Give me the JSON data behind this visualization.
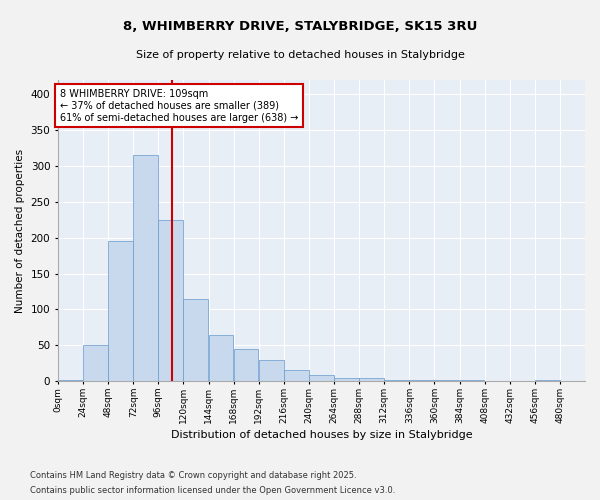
{
  "title_line1": "8, WHIMBERRY DRIVE, STALYBRIDGE, SK15 3RU",
  "title_line2": "Size of property relative to detached houses in Stalybridge",
  "xlabel": "Distribution of detached houses by size in Stalybridge",
  "ylabel": "Number of detached properties",
  "bar_color": "#c8d9ed",
  "bar_edge_color": "#6699cc",
  "bg_color": "#e8eef6",
  "grid_color": "#ffffff",
  "vline_value": 109,
  "vline_color": "#cc0000",
  "annotation_text": "8 WHIMBERRY DRIVE: 109sqm\n← 37% of detached houses are smaller (389)\n61% of semi-detached houses are larger (638) →",
  "annotation_box_color": "#cc0000",
  "bin_edges": [
    0,
    24,
    48,
    72,
    96,
    120,
    144,
    168,
    192,
    216,
    240,
    264,
    288,
    312,
    336,
    360,
    384,
    408,
    432,
    456,
    480,
    504
  ],
  "bar_heights": [
    1,
    50,
    195,
    315,
    225,
    115,
    65,
    45,
    30,
    15,
    8,
    4,
    4,
    2,
    1,
    1,
    1,
    0,
    0,
    1,
    0
  ],
  "ylim": [
    0,
    420
  ],
  "yticks": [
    0,
    50,
    100,
    150,
    200,
    250,
    300,
    350,
    400
  ],
  "footnote1": "Contains HM Land Registry data © Crown copyright and database right 2025.",
  "footnote2": "Contains public sector information licensed under the Open Government Licence v3.0."
}
